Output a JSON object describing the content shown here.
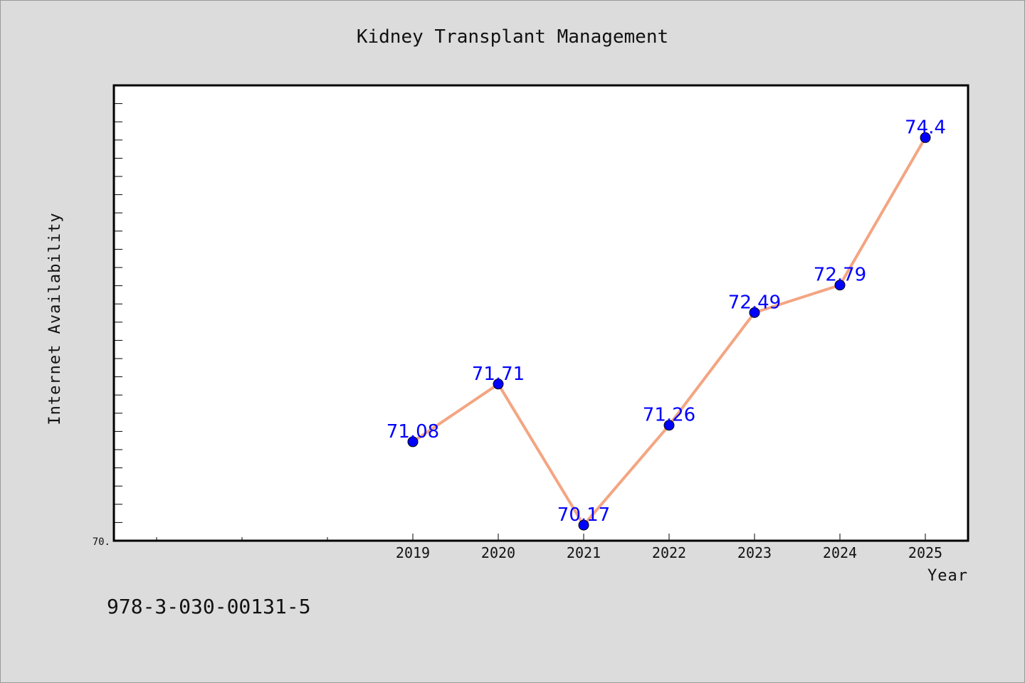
{
  "chart_data": {
    "type": "line",
    "title": "Kidney Transplant Management",
    "xlabel": "Year",
    "ylabel": "Internet Availability",
    "categories": [
      "2019",
      "2020",
      "2021",
      "2022",
      "2023",
      "2024",
      "2025"
    ],
    "series": [
      {
        "values": [
          71.08,
          71.71,
          70.17,
          71.26,
          72.49,
          72.79,
          74.4
        ],
        "labels": [
          "71.08",
          "71.71",
          "70.17",
          "71.26",
          "72.49",
          "72.79",
          "74.4"
        ]
      }
    ],
    "y_tick_label": "70.",
    "ylim": [
      70.0,
      74.97
    ],
    "x_slots": 10,
    "grid": false,
    "line_color": "#f4a582",
    "marker_color": "#0000ff",
    "label_color": "#0000ff"
  },
  "footer": {
    "isbn": "978-3-030-00131-5"
  }
}
